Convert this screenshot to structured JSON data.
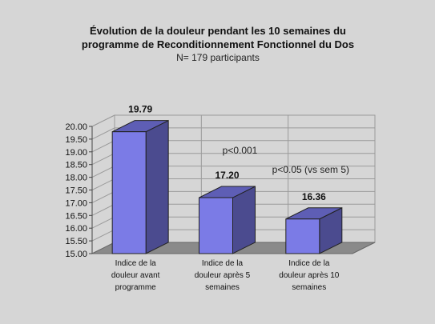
{
  "chart_data": {
    "type": "bar",
    "title_lines": [
      "Évolution de la douleur pendant les 10 semaines du",
      "programme de Reconditionnement Fonctionnel du Dos"
    ],
    "subtitle": "N= 179 participants",
    "categories": [
      [
        "Indice de la",
        "douleur avant",
        "programme"
      ],
      [
        "Indice de la",
        "douleur après 5",
        "semaines"
      ],
      [
        "Indice de la",
        "douleur après 10",
        "semaines"
      ]
    ],
    "values": [
      19.79,
      17.2,
      16.36
    ],
    "value_labels": [
      "19.79",
      "17.20",
      "16.36"
    ],
    "annotations": [
      "p<0.001",
      "p<0.05 (vs sem 5)"
    ],
    "ylim": [
      15.0,
      20.0
    ],
    "yticks": [
      "15.00",
      "15.50",
      "16.00",
      "16.50",
      "17.00",
      "17.50",
      "18.00",
      "18.50",
      "19.00",
      "19.50",
      "20.00"
    ],
    "grid": true,
    "legend": "none",
    "colors": {
      "bar_front": "#7b7be6",
      "bar_side": "#4b4b8f",
      "bar_top": "#5e5eb5",
      "floor": "#8a8a8a",
      "wall": "#d6d6d6"
    }
  }
}
